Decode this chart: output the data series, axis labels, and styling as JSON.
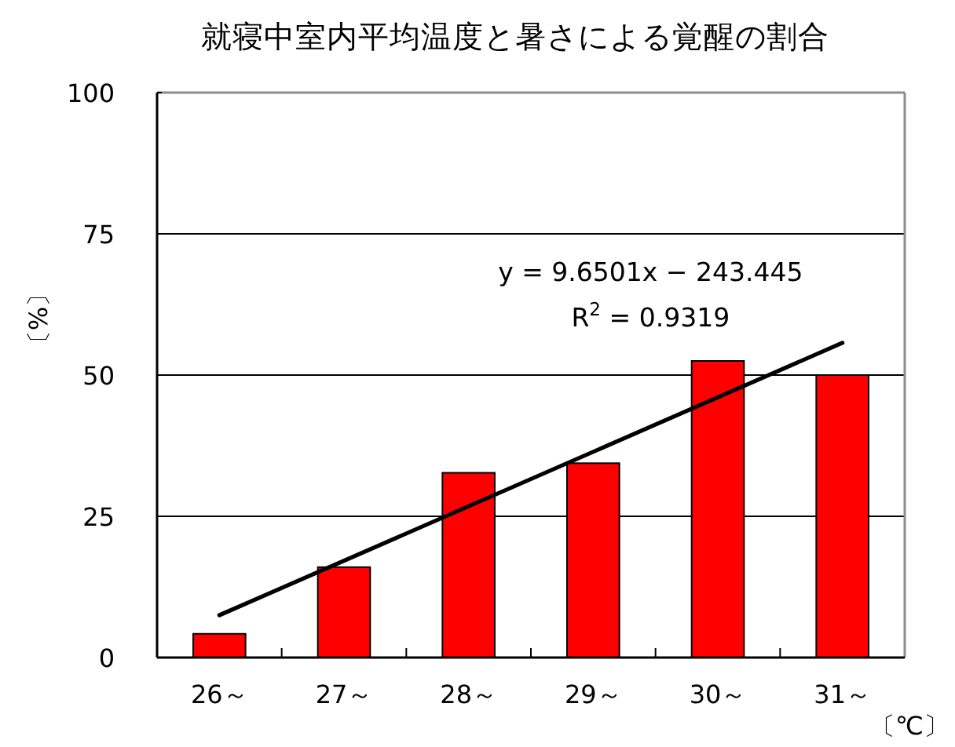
{
  "chart_data": {
    "type": "bar",
    "title": "就寝中室内平均温度と暑さによる覚醒の割合",
    "xlabel": "〔℃〕",
    "ylabel": "〔%〕",
    "categories": [
      "26～",
      "27～",
      "28～",
      "29～",
      "30～",
      "31～"
    ],
    "series": [
      {
        "color": "#ff0000",
        "values": [
          4.2,
          16,
          32.7,
          34.4,
          52.5,
          50
        ]
      },
      {
        "type": "line",
        "color": "#000000",
        "x": [
          "26～",
          "31～"
        ],
        "values": [
          7.5,
          55.7
        ]
      }
    ],
    "ylim": [
      0,
      100
    ],
    "yticks": [
      0,
      25,
      50,
      75,
      100
    ],
    "grid": "y",
    "annotations": [
      "y = 9.6501x − 243.445",
      "R$^{2}$ = 0.9319"
    ]
  }
}
